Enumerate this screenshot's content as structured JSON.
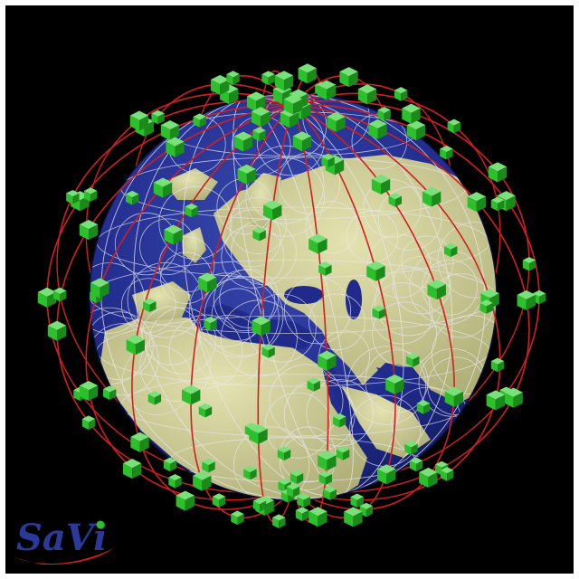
{
  "scene": {
    "subject": "satellite-constellation-over-earth",
    "background_color": "#000000",
    "colors": {
      "ocean": "#1f2a8a",
      "land": "#c8c890",
      "grid": "#e8e8f0",
      "orbit": "#d02020",
      "satellite": "#2cc02c"
    }
  },
  "logo": {
    "text": "SaVi",
    "text_color": "#2b3a9a",
    "swoosh_color": "#d02020",
    "dot_color": "#2cc02c"
  }
}
